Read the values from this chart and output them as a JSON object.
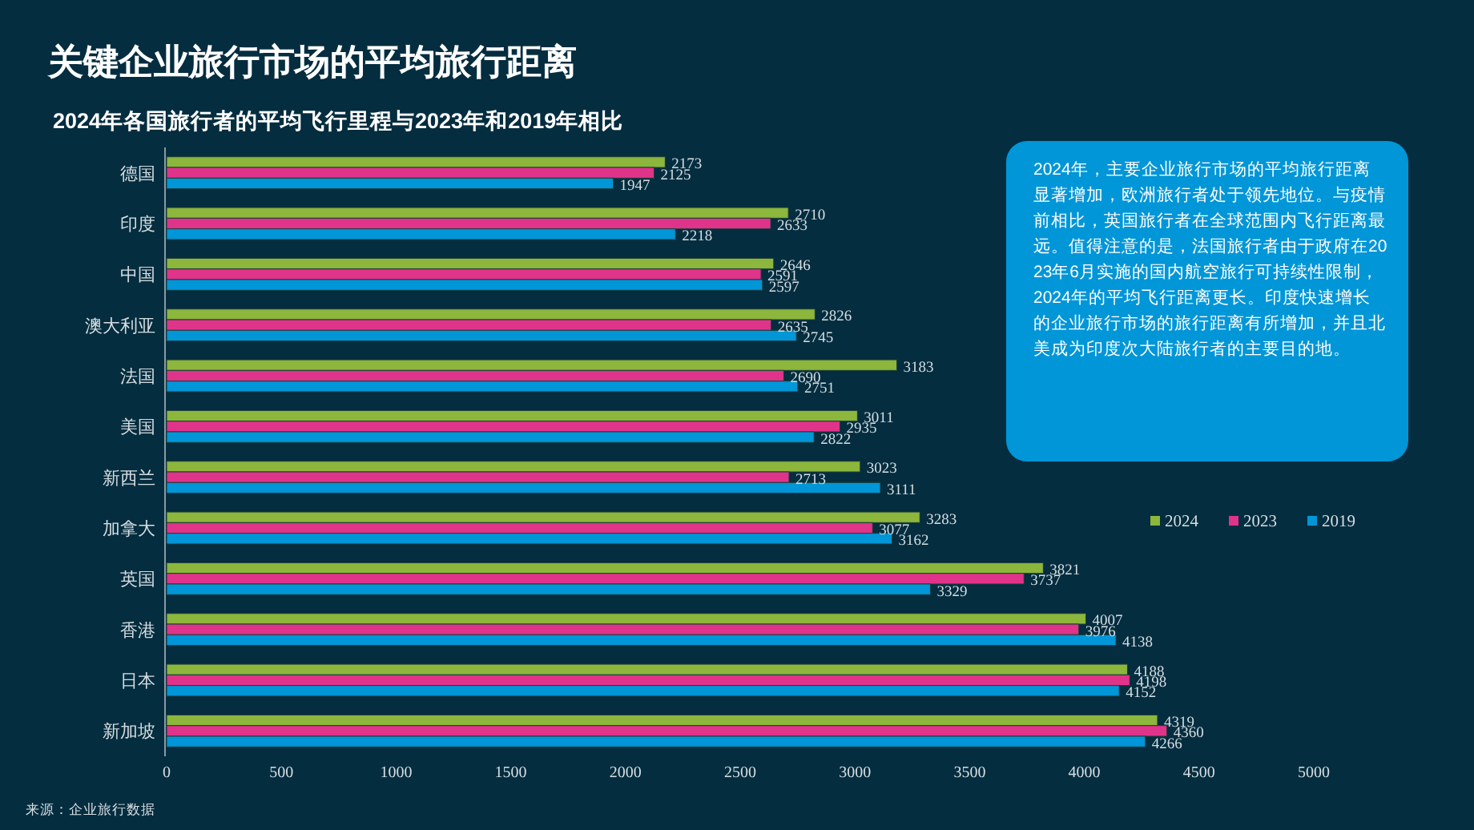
{
  "chart_data": {
    "type": "bar",
    "orientation": "horizontal",
    "title": "关键企业旅行市场的平均旅行距离",
    "subtitle": "2024年各国旅行者的平均飞行里程与2023年和2019年相比",
    "categories": [
      "德国",
      "印度",
      "中国",
      "澳大利亚",
      "法国",
      "美国",
      "新西兰",
      "加拿大",
      "英国",
      "香港",
      "日本",
      "新加坡"
    ],
    "series": [
      {
        "name": "2024",
        "color": "#8cb63c",
        "values": [
          2173,
          2710,
          2646,
          2826,
          3183,
          3011,
          3023,
          3283,
          3821,
          4007,
          4188,
          4319
        ]
      },
      {
        "name": "2023",
        "color": "#e0338a",
        "values": [
          2125,
          2633,
          2591,
          2635,
          2690,
          2935,
          2713,
          3077,
          3737,
          3976,
          4198,
          4360
        ]
      },
      {
        "name": "2019",
        "color": "#0096d8",
        "values": [
          1947,
          2218,
          2597,
          2745,
          2751,
          2822,
          3111,
          3162,
          3329,
          4138,
          4152,
          4266
        ]
      }
    ],
    "xlim": [
      0,
      5000
    ],
    "xticks": [
      0,
      500,
      1000,
      1500,
      2000,
      2500,
      3000,
      3500,
      4000,
      4500,
      5000
    ],
    "data_labels": true,
    "legend": "right",
    "annotations": [
      "2024年，主要企业旅行市场的平均旅行距离显著增加，欧洲旅行者处于领先地位。与疫情前相比，英国旅行者在全球范围内飞行距离最远。值得注意的是，法国旅行者由于政府在2023年6月实施的国内航空旅行可持续性限制，2024年的平均飞行距离更长。印度快速增长的企业旅行市场的旅行距离有所增加，并且北美成为印度次大陆旅行者的主要目的地。",
      "来源：企业旅行数据"
    ]
  }
}
